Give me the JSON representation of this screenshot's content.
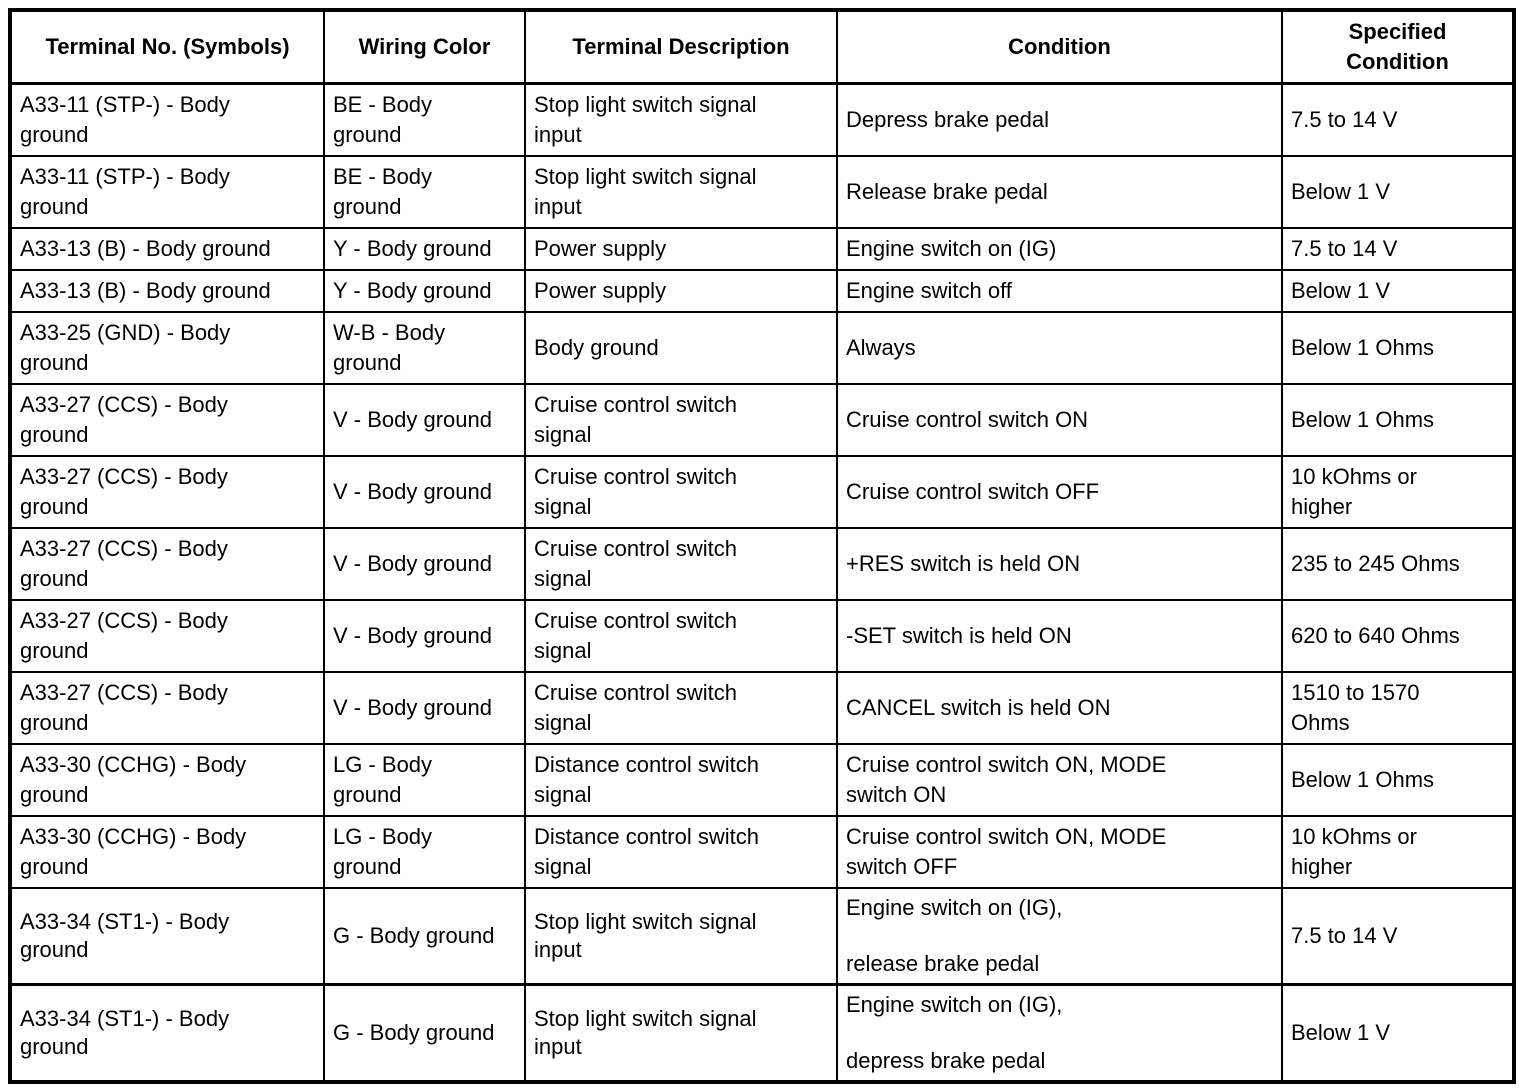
{
  "table": {
    "columns": [
      {
        "label": "Terminal No. (Symbols)"
      },
      {
        "label": "Wiring Color"
      },
      {
        "label": "Terminal Description"
      },
      {
        "label": "Condition"
      },
      {
        "label": "Specified\nCondition"
      }
    ],
    "rows": [
      {
        "terminal": "A33-11 (STP-) - Body\nground",
        "wiring_color": "BE - Body\nground",
        "description": "Stop light switch signal\ninput",
        "condition": "Depress brake pedal",
        "specified": "7.5 to 14 V"
      },
      {
        "terminal": "A33-11 (STP-) - Body\nground",
        "wiring_color": "BE - Body\nground",
        "description": "Stop light switch signal\ninput",
        "condition": "Release brake pedal",
        "specified": "Below 1 V"
      },
      {
        "terminal": "A33-13 (B) - Body ground",
        "wiring_color": "Y - Body ground",
        "description": "Power supply",
        "condition": "Engine switch on (IG)",
        "specified": "7.5 to 14 V"
      },
      {
        "terminal": "A33-13 (B) - Body ground",
        "wiring_color": "Y - Body ground",
        "description": "Power supply",
        "condition": "Engine switch off",
        "specified": "Below 1 V"
      },
      {
        "terminal": "A33-25 (GND) - Body\nground",
        "wiring_color": "W-B - Body\nground",
        "description": "Body ground",
        "condition": "Always",
        "specified": "Below 1 Ohms"
      },
      {
        "terminal": "A33-27 (CCS) - Body\nground",
        "wiring_color": "V - Body ground",
        "description": "Cruise control switch\nsignal",
        "condition": "Cruise control switch ON",
        "specified": "Below 1 Ohms"
      },
      {
        "terminal": "A33-27 (CCS) - Body\nground",
        "wiring_color": "V - Body ground",
        "description": "Cruise control switch\nsignal",
        "condition": "Cruise control switch OFF",
        "specified": "10 kOhms or\nhigher"
      },
      {
        "terminal": "A33-27 (CCS) - Body\nground",
        "wiring_color": "V - Body ground",
        "description": "Cruise control switch\nsignal",
        "condition": "+RES switch is held ON",
        "specified": "235 to 245 Ohms"
      },
      {
        "terminal": "A33-27 (CCS) - Body\nground",
        "wiring_color": "V - Body ground",
        "description": "Cruise control switch\nsignal",
        "condition": "-SET switch is held ON",
        "specified": "620 to 640 Ohms"
      },
      {
        "terminal": "A33-27 (CCS) - Body\nground",
        "wiring_color": "V - Body ground",
        "description": "Cruise control switch\nsignal",
        "condition": "CANCEL switch is held ON",
        "specified": "1510 to 1570\nOhms"
      },
      {
        "terminal": "A33-30 (CCHG) - Body\nground",
        "wiring_color": "LG - Body\nground",
        "description": "Distance control switch\nsignal",
        "condition": "Cruise control switch ON, MODE\nswitch ON",
        "specified": "Below 1 Ohms"
      },
      {
        "terminal": "A33-30 (CCHG) - Body\nground",
        "wiring_color": "LG - Body\nground",
        "description": "Distance control switch\nsignal",
        "condition": "Cruise control switch ON, MODE\nswitch OFF",
        "specified": "10 kOhms or\nhigher"
      },
      {
        "terminal": "A33-34 (ST1-) - Body\nground",
        "wiring_color": "G - Body ground",
        "description": "Stop light switch signal\ninput",
        "condition": "Engine switch on (IG),\n\nrelease brake pedal",
        "specified": "7.5 to 14 V"
      },
      {
        "terminal": "A33-34 (ST1-) - Body\nground",
        "wiring_color": "G - Body ground",
        "description": "Stop light switch signal\ninput",
        "condition": "Engine switch on (IG),\n\ndepress brake pedal",
        "specified": "Below 1 V"
      }
    ]
  }
}
